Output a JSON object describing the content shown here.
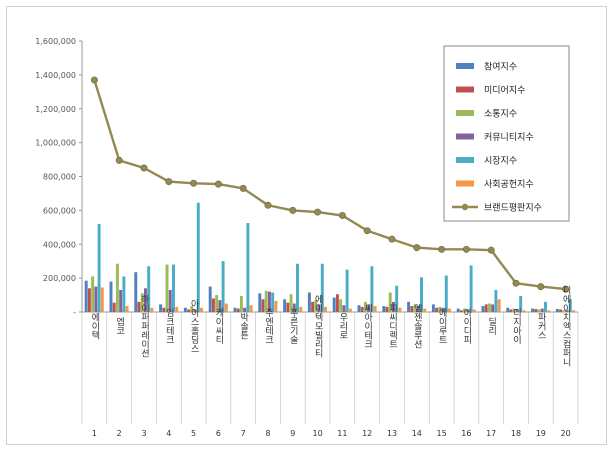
{
  "chart_data": {
    "type": "bar",
    "ylim": [
      0,
      1600000
    ],
    "y_ticks": [
      "-",
      "200,000",
      "400,000",
      "600,000",
      "800,000",
      "1,000,000",
      "1,200,000",
      "1,400,000",
      "1,600,000"
    ],
    "ranks": [
      "1",
      "2",
      "3",
      "4",
      "5",
      "6",
      "7",
      "8",
      "9",
      "10",
      "11",
      "12",
      "13",
      "14",
      "15",
      "16",
      "17",
      "18",
      "19",
      "20"
    ],
    "categories": [
      "에이텍",
      "엡코",
      "하이퍼퍼레이션",
      "임크테크",
      "아이스홀딩스",
      "케이씨티",
      "박솔튼",
      "주엔테크",
      "푸른기술",
      "에이텍모빌리티",
      "우리로",
      "씨아이테크",
      "피씨디렉트",
      "엠젠솔루션",
      "에이루트",
      "아이디피",
      "딜리",
      "디지아이",
      "파커스",
      "디에이치엑스컴퍼니"
    ],
    "legend_position": "right",
    "series": [
      {
        "name": "참여지수",
        "color": "#4f81bd",
        "values": [
          185000,
          180000,
          235000,
          45000,
          25000,
          150000,
          25000,
          110000,
          75000,
          115000,
          85000,
          40000,
          35000,
          60000,
          45000,
          20000,
          35000,
          25000,
          20000,
          18000
        ]
      },
      {
        "name": "미디어지수",
        "color": "#c0504d",
        "values": [
          140000,
          55000,
          60000,
          25000,
          15000,
          80000,
          20000,
          75000,
          55000,
          60000,
          105000,
          30000,
          30000,
          35000,
          25000,
          10000,
          45000,
          15000,
          18000,
          15000
        ]
      },
      {
        "name": "소통지수",
        "color": "#9bbb59",
        "values": [
          210000,
          285000,
          110000,
          280000,
          35000,
          100000,
          95000,
          125000,
          105000,
          70000,
          75000,
          60000,
          115000,
          45000,
          30000,
          20000,
          50000,
          20000,
          15000,
          10000
        ]
      },
      {
        "name": "커뮤니티지수",
        "color": "#8064a2",
        "values": [
          150000,
          130000,
          140000,
          130000,
          15000,
          70000,
          25000,
          120000,
          50000,
          45000,
          40000,
          45000,
          60000,
          35000,
          25000,
          15000,
          45000,
          15000,
          20000,
          10000
        ]
      },
      {
        "name": "시장지수",
        "color": "#4bacc6",
        "values": [
          520000,
          210000,
          270000,
          280000,
          645000,
          300000,
          525000,
          115000,
          285000,
          285000,
          250000,
          270000,
          155000,
          205000,
          215000,
          275000,
          130000,
          95000,
          60000,
          75000
        ]
      },
      {
        "name": "사회공헌지수",
        "color": "#f79646",
        "values": [
          145000,
          35000,
          25000,
          30000,
          25000,
          50000,
          40000,
          65000,
          30000,
          30000,
          20000,
          35000,
          25000,
          20000,
          20000,
          15000,
          75000,
          10000,
          10000,
          10000
        ]
      },
      {
        "name": "브랜드평판지수",
        "color": "#938953",
        "type": "line",
        "values": [
          1370000,
          895000,
          850000,
          770000,
          760000,
          755000,
          730000,
          630000,
          600000,
          590000,
          570000,
          480000,
          430000,
          380000,
          370000,
          370000,
          365000,
          170000,
          150000,
          135000
        ]
      }
    ]
  }
}
